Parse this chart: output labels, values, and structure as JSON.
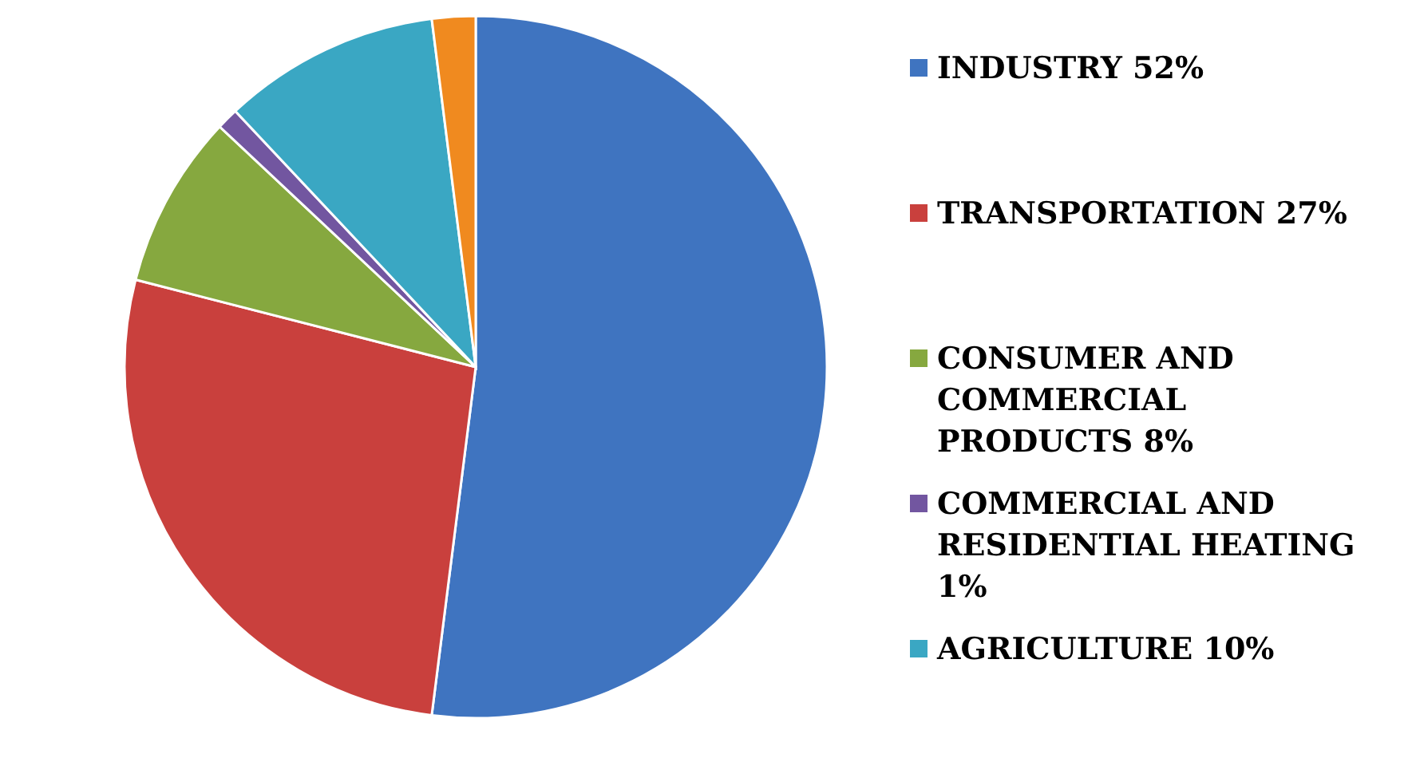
{
  "chart_data": {
    "type": "pie",
    "categories": [
      "INDUSTRY 52%",
      "TRANSPORTATION 27%",
      "CONSUMER AND COMMERCIAL PRODUCTS 8%",
      "COMMERCIAL AND RESIDENTIAL HEATING 1%",
      "AGRICULTURE 10%",
      null
    ],
    "values": [
      52,
      27,
      8,
      1,
      10,
      2
    ],
    "colors": [
      "#3f74c0",
      "#c9403d",
      "#86a83f",
      "#7256a0",
      "#3aa7c3",
      "#f08a1f"
    ],
    "legend": "right"
  }
}
